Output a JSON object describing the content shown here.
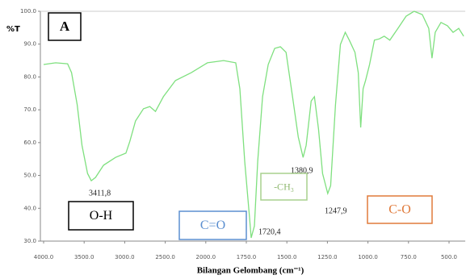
{
  "chart_data": {
    "type": "line",
    "y_label": "%T",
    "x_label": "Bilangan Gelombang (cm⁻¹)",
    "panel_label": "A",
    "xlim": [
      4000,
      400
    ],
    "ylim": [
      30,
      100
    ],
    "xticks": [
      {
        "value": 4000,
        "label": "4000.0"
      },
      {
        "value": 3500,
        "label": "3500.0"
      },
      {
        "value": 3000,
        "label": "3000.0"
      },
      {
        "value": 2500,
        "label": "2500.0"
      },
      {
        "value": 2000,
        "label": "2000.0"
      },
      {
        "value": 1750,
        "label": "1750.0"
      },
      {
        "value": 1500,
        "label": "1500.0"
      },
      {
        "value": 1250,
        "label": "1250.0"
      },
      {
        "value": 1000,
        "label": "1000.0"
      },
      {
        "value": 750,
        "label": "750.0"
      },
      {
        "value": 500,
        "label": "500.0"
      }
    ],
    "yticks": [
      {
        "value": 30,
        "label": "30.0"
      },
      {
        "value": 40,
        "label": "40.0"
      },
      {
        "value": 50,
        "label": "50.0"
      },
      {
        "value": 60,
        "label": "60.0"
      },
      {
        "value": 70,
        "label": "70.0"
      },
      {
        "value": 80,
        "label": "80.0"
      },
      {
        "value": 90,
        "label": "90.0"
      },
      {
        "value": 100,
        "label": "100.0"
      }
    ],
    "series": [
      {
        "color": "#7fe07f",
        "x": [
          4000,
          3852,
          3704,
          3655,
          3586,
          3527,
          3458,
          3412,
          3360,
          3261,
          3113,
          2985,
          2936,
          2867,
          2769,
          2690,
          2621,
          2523,
          2375,
          2178,
          1990,
          1890,
          1815,
          1790,
          1760,
          1730,
          1720,
          1700,
          1680,
          1650,
          1615,
          1575,
          1540,
          1505,
          1465,
          1430,
          1400,
          1381,
          1350,
          1330,
          1305,
          1280,
          1248,
          1230,
          1200,
          1170,
          1140,
          1115,
          1080,
          1060,
          1045,
          1030,
          1015,
          990,
          960,
          930,
          900,
          865,
          815,
          765,
          715,
          665,
          625,
          605,
          585,
          550,
          510,
          475,
          440,
          410
        ],
        "values": [
          83.8,
          84.3,
          84.0,
          81.3,
          71.5,
          59.2,
          50.6,
          48.4,
          49.4,
          53.1,
          55.5,
          56.8,
          60.4,
          66.6,
          70.3,
          71.0,
          69.5,
          74.0,
          78.9,
          81.3,
          84.3,
          85.0,
          84.3,
          76.4,
          54.3,
          37.1,
          31.0,
          34.6,
          54.3,
          74.0,
          83.8,
          88.7,
          89.2,
          87.5,
          74.0,
          61.7,
          55.5,
          59.2,
          72.7,
          74.0,
          64.1,
          50.6,
          44.5,
          46.9,
          71.5,
          89.9,
          93.6,
          91.2,
          87.5,
          81.3,
          64.6,
          76.4,
          78.9,
          83.8,
          91.2,
          91.6,
          92.4,
          91.2,
          94.8,
          98.5,
          100,
          99,
          94.8,
          85.7,
          93.6,
          96.6,
          95.6,
          93.6,
          94.8,
          92.4
        ]
      }
    ],
    "annotations": [
      "3411,8",
      "1720,4",
      "1380,9",
      "1247,9",
      "O-H",
      "C=O",
      "-CH₃",
      "C-O"
    ]
  }
}
